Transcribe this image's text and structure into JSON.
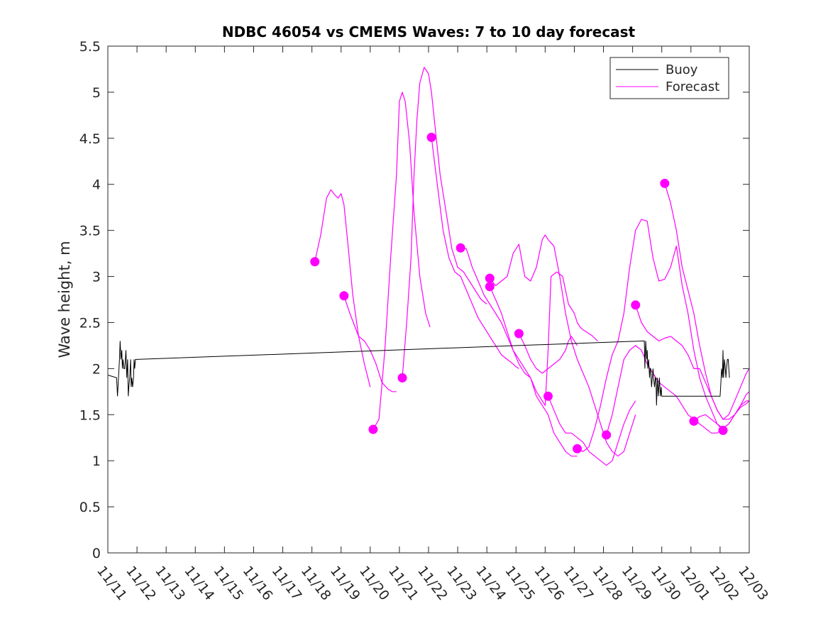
{
  "chart_data": {
    "type": "line",
    "title": "NDBC 46054 vs CMEMS Waves: 7 to 10 day forecast",
    "xlabel": "",
    "ylabel": "Wave height, m",
    "xlim": [
      0,
      22
    ],
    "ylim": [
      0,
      5.5
    ],
    "x_tick_labels": [
      "11/11",
      "11/12",
      "11/13",
      "11/14",
      "11/15",
      "11/16",
      "11/17",
      "11/18",
      "11/19",
      "11/20",
      "11/21",
      "11/22",
      "11/23",
      "11/24",
      "11/25",
      "11/26",
      "11/27",
      "11/28",
      "11/29",
      "11/30",
      "12/01",
      "12/02",
      "12/03"
    ],
    "y_ticks": [
      0,
      0.5,
      1,
      1.5,
      2,
      2.5,
      3,
      3.5,
      4,
      4.5,
      5,
      5.5
    ],
    "y_tick_labels": [
      "0",
      "0.5",
      "1",
      "1.5",
      "2",
      "2.5",
      "3",
      "3.5",
      "4",
      "4.5",
      "5",
      "5.5"
    ],
    "legend": {
      "position": "top-right",
      "entries": [
        {
          "label": "Buoy",
          "color": "#000000"
        },
        {
          "label": "Forecast",
          "color": "#ff00ff"
        }
      ]
    },
    "buoy": {
      "name": "Buoy",
      "color": "#000000",
      "x": [
        0,
        0.3,
        0.33,
        0.4,
        0.42,
        0.45,
        0.48,
        0.5,
        0.52,
        0.55,
        0.58,
        0.6,
        0.62,
        0.65,
        0.68,
        0.7,
        0.72,
        0.75,
        0.78,
        0.8,
        0.82,
        0.85,
        0.88,
        0.9,
        0.92,
        0.95,
        0.98,
        1.0,
        18.4,
        18.42,
        18.45,
        18.48,
        18.5,
        18.52,
        18.55,
        18.58,
        18.6,
        18.62,
        18.65,
        18.7,
        18.72,
        18.75,
        18.78,
        18.8,
        18.82,
        18.85,
        18.88,
        18.9,
        18.92,
        18.95,
        18.98,
        19.0,
        20.2,
        20.3,
        21.0,
        21.02,
        21.05,
        21.08,
        21.1,
        21.12,
        21.15,
        21.18,
        21.2,
        21.22,
        21.25,
        21.28,
        21.3,
        21.32
      ],
      "values": [
        1.93,
        1.9,
        1.7,
        2.1,
        2.3,
        2.1,
        2.2,
        2.0,
        2.1,
        2.0,
        2.0,
        2.1,
        2.2,
        1.9,
        2.1,
        1.7,
        1.8,
        1.9,
        2.1,
        1.8,
        1.9,
        1.8,
        1.9,
        2.1,
        2.0,
        2.1,
        2.1,
        2.1,
        2.3,
        2.0,
        2.3,
        2.1,
        2.2,
        2.0,
        2.1,
        1.9,
        2.0,
        2.0,
        1.8,
        2.0,
        1.9,
        1.8,
        1.9,
        1.9,
        1.6,
        1.9,
        1.7,
        1.8,
        1.9,
        1.7,
        1.8,
        1.7,
        1.7,
        1.7,
        1.7,
        1.8,
        2.0,
        1.9,
        2.2,
        1.9,
        2.1,
        2.0,
        1.9,
        2.0,
        2.1,
        2.1,
        2.0,
        1.9
      ]
    },
    "series": [
      {
        "name": "Forecast",
        "x": [
          7.1,
          7.3,
          7.5,
          7.65,
          7.8,
          7.9,
          8.0,
          8.1,
          8.25,
          8.4,
          8.6,
          8.8,
          9.0
        ],
        "values": [
          3.16,
          3.45,
          3.85,
          3.94,
          3.88,
          3.85,
          3.9,
          3.78,
          3.3,
          2.8,
          2.35,
          2.05,
          1.8
        ]
      },
      {
        "name": "Forecast",
        "x": [
          8.1,
          8.3,
          8.6,
          8.8,
          9.0,
          9.2,
          9.4,
          9.6,
          9.75,
          9.9
        ],
        "values": [
          2.79,
          2.6,
          2.35,
          2.3,
          2.2,
          2.05,
          1.85,
          1.78,
          1.75,
          1.75
        ]
      },
      {
        "name": "Forecast",
        "x": [
          9.1,
          9.3,
          9.5,
          9.7,
          9.9,
          10.0,
          10.1,
          10.2,
          10.35,
          10.5,
          10.7,
          10.9,
          11.05
        ],
        "values": [
          1.34,
          1.45,
          2.2,
          3.2,
          4.1,
          4.9,
          5.0,
          4.9,
          4.45,
          3.7,
          3.0,
          2.6,
          2.45
        ]
      },
      {
        "name": "Forecast",
        "x": [
          10.1,
          10.25,
          10.4,
          10.5,
          10.6,
          10.7,
          10.85,
          11.0,
          11.1,
          11.2,
          11.4,
          11.6,
          11.8,
          12.0,
          12.2,
          12.4,
          12.6,
          12.8,
          13.0
        ],
        "values": [
          1.9,
          2.5,
          3.2,
          4.1,
          4.7,
          5.1,
          5.27,
          5.2,
          5.0,
          4.7,
          4.1,
          3.7,
          3.3,
          3.1,
          3.05,
          2.95,
          2.85,
          2.75,
          2.7
        ]
      },
      {
        "name": "Forecast",
        "x": [
          11.1,
          11.3,
          11.5,
          11.7,
          11.9,
          12.1,
          12.3,
          12.5,
          12.7,
          12.9,
          13.1,
          13.3,
          13.5,
          13.7,
          13.9,
          14.0,
          14.1
        ],
        "values": [
          4.51,
          4.0,
          3.5,
          3.2,
          3.05,
          3.0,
          2.85,
          2.7,
          2.55,
          2.45,
          2.35,
          2.25,
          2.15,
          2.1,
          2.05,
          2.02,
          2.0
        ]
      },
      {
        "name": "Forecast",
        "x": [
          12.1,
          12.3,
          12.5,
          12.7,
          12.9,
          13.1,
          13.3,
          13.5,
          13.7,
          13.9,
          14.1,
          14.3,
          14.5,
          14.7,
          14.9,
          15.0,
          15.1,
          15.2,
          15.4,
          15.6,
          15.8,
          16.0,
          16.1,
          16.2,
          16.3,
          16.4,
          16.5,
          16.6,
          16.7,
          16.8
        ],
        "values": [
          3.31,
          3.3,
          3.1,
          2.95,
          2.8,
          2.7,
          2.6,
          2.5,
          2.35,
          2.2,
          2.1,
          2.0,
          1.9,
          1.75,
          1.65,
          1.6,
          2.2,
          3.0,
          3.05,
          3.0,
          2.7,
          2.6,
          2.5,
          2.45,
          2.42,
          2.4,
          2.38,
          2.36,
          2.33,
          2.3
        ]
      },
      {
        "name": "Forecast",
        "x": [
          13.1,
          13.3,
          13.5,
          13.7,
          13.9,
          14.1,
          14.3,
          14.5,
          14.7,
          14.9,
          15.0,
          15.1,
          15.3,
          15.5,
          15.7,
          15.9,
          16.1,
          16.3,
          16.5,
          16.7,
          16.9,
          17.1,
          17.3,
          17.5,
          17.7,
          17.9,
          18.1
        ],
        "values": [
          2.98,
          2.9,
          2.95,
          3.0,
          3.25,
          3.35,
          3.0,
          2.95,
          3.1,
          3.4,
          3.45,
          3.4,
          3.33,
          3.0,
          2.6,
          2.3,
          2.1,
          1.95,
          1.8,
          1.6,
          1.4,
          1.2,
          1.1,
          1.05,
          1.1,
          1.3,
          1.5
        ]
      },
      {
        "name": "Forecast",
        "x": [
          13.1,
          13.3,
          13.5,
          13.7,
          13.9,
          14.1,
          14.3,
          14.5,
          14.7,
          14.9,
          15.1,
          15.3,
          15.5,
          15.7,
          15.9,
          16.1
        ],
        "values": [
          2.89,
          2.75,
          2.6,
          2.4,
          2.2,
          2.05,
          1.95,
          1.9,
          1.7,
          1.6,
          1.5,
          1.3,
          1.2,
          1.1,
          1.05,
          1.05
        ]
      },
      {
        "name": "Forecast",
        "x": [
          14.1,
          14.3,
          14.5,
          14.7,
          14.9,
          15.1,
          15.3,
          15.5,
          15.6,
          15.7,
          15.8,
          15.9,
          16.0,
          16.1
        ],
        "values": [
          2.38,
          2.25,
          2.1,
          2.0,
          1.95,
          2.0,
          2.05,
          2.1,
          2.15,
          2.2,
          2.3,
          2.35,
          2.3,
          2.25
        ]
      },
      {
        "name": "Forecast",
        "x": [
          15.1,
          15.3,
          15.5,
          15.7,
          15.9,
          16.1,
          16.3,
          16.5,
          16.7,
          16.9,
          17.1,
          17.3,
          17.5,
          17.7,
          17.9,
          18.1
        ],
        "values": [
          1.7,
          1.55,
          1.4,
          1.3,
          1.3,
          1.25,
          1.2,
          1.1,
          1.05,
          1.0,
          0.95,
          1.0,
          1.2,
          1.4,
          1.55,
          1.65
        ]
      },
      {
        "name": "Forecast",
        "x": [
          16.1,
          16.3,
          16.5,
          16.7,
          16.9,
          17.1,
          17.3,
          17.5,
          17.7,
          17.9,
          18.1,
          18.3,
          18.5,
          18.7,
          18.9,
          19.1,
          19.3,
          19.5,
          19.7,
          19.9,
          20.1,
          20.3,
          20.5,
          20.7,
          20.9,
          21.1
        ],
        "values": [
          1.13,
          1.1,
          1.15,
          1.35,
          1.6,
          1.9,
          2.15,
          2.3,
          2.6,
          3.1,
          3.5,
          3.62,
          3.6,
          3.2,
          2.95,
          2.97,
          3.1,
          3.33,
          2.9,
          2.6,
          2.2,
          1.9,
          1.7,
          1.55,
          1.4,
          1.33
        ]
      },
      {
        "name": "Forecast",
        "x": [
          17.1,
          17.3,
          17.5,
          17.7,
          17.9,
          18.1,
          18.3,
          18.5,
          18.7,
          18.9,
          19.1,
          19.3,
          19.5,
          19.7,
          19.9,
          20.1,
          20.3,
          20.5,
          20.7,
          20.9,
          21.1,
          21.3,
          21.5,
          21.7,
          21.9,
          22.0
        ],
        "values": [
          1.28,
          1.5,
          1.8,
          2.1,
          2.2,
          2.25,
          2.2,
          2.05,
          1.95,
          1.85,
          1.8,
          1.75,
          1.7,
          1.6,
          1.5,
          1.45,
          1.4,
          1.35,
          1.3,
          1.3,
          1.35,
          1.4,
          1.5,
          1.6,
          1.65,
          1.65
        ]
      },
      {
        "name": "Forecast",
        "x": [
          18.1,
          18.3,
          18.5,
          18.7,
          18.9,
          19.1,
          19.3,
          19.5,
          19.7,
          19.9,
          20.1,
          20.3,
          20.5,
          20.7,
          20.9,
          21.1,
          21.3,
          21.5,
          21.7,
          21.9,
          22.0
        ],
        "values": [
          2.69,
          2.5,
          2.4,
          2.35,
          2.3,
          2.33,
          2.35,
          2.3,
          2.25,
          2.15,
          2.0,
          2.0,
          1.85,
          1.7,
          1.55,
          1.45,
          1.45,
          1.5,
          1.6,
          1.72,
          1.75
        ]
      },
      {
        "name": "Forecast",
        "x": [
          19.1,
          19.3,
          19.5,
          19.7,
          19.9,
          20.1,
          20.3,
          20.5,
          20.7,
          20.9,
          21.1,
          21.3,
          21.5,
          21.7,
          21.9,
          22.0
        ],
        "values": [
          4.01,
          3.8,
          3.5,
          3.1,
          2.85,
          2.6,
          2.25,
          1.95,
          1.7,
          1.55,
          1.45,
          1.5,
          1.65,
          1.8,
          1.95,
          2.0
        ]
      },
      {
        "name": "Forecast",
        "x": [
          20.1,
          20.3,
          20.5,
          20.7,
          20.9,
          21.1,
          21.3,
          21.5,
          21.7,
          21.9,
          22.0
        ],
        "values": [
          1.43,
          1.48,
          1.5,
          1.45,
          1.4,
          1.35,
          1.4,
          1.5,
          1.58,
          1.62,
          1.65
        ]
      }
    ],
    "markers": {
      "x": [
        7.1,
        8.1,
        9.1,
        10.1,
        11.1,
        12.1,
        13.1,
        13.1,
        14.1,
        15.1,
        16.1,
        17.1,
        18.1,
        19.1,
        20.1,
        21.1
      ],
      "values": [
        3.16,
        2.79,
        1.34,
        1.9,
        4.51,
        3.31,
        2.98,
        2.89,
        2.38,
        1.7,
        1.13,
        1.28,
        2.69,
        4.01,
        1.43,
        1.33
      ]
    }
  }
}
